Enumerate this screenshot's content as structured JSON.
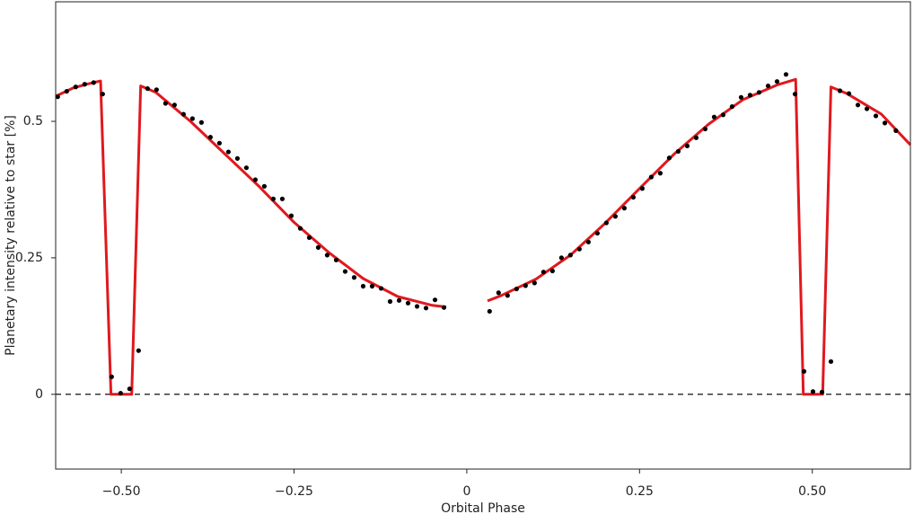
{
  "chart_data": {
    "type": "line",
    "x_label": "Orbital Phase",
    "y_label": "Planetary intensity relative to star [%]",
    "xlim": [
      -0.595,
      0.642
    ],
    "ylim": [
      -0.137,
      0.719
    ],
    "xticks": [
      {
        "value": -0.5,
        "label": "−0.50"
      },
      {
        "value": -0.25,
        "label": "−0.25"
      },
      0,
      0.25,
      {
        "value": 0.5,
        "label": "0.50"
      }
    ],
    "yticks": [
      0,
      0.25,
      0.5
    ],
    "reference_line": 0,
    "series": [
      {
        "type": "line",
        "color": "#e0191e",
        "x": [
          -0.595,
          -0.57,
          -0.55,
          -0.53,
          -0.515,
          -0.485,
          -0.472,
          -0.45,
          -0.4,
          -0.35,
          -0.3,
          -0.25,
          -0.2,
          -0.15,
          -0.1,
          -0.05,
          -0.03,
          0,
          0.03,
          0.05,
          0.1,
          0.15,
          0.2,
          0.25,
          0.3,
          0.35,
          0.4,
          0.45,
          0.476,
          0.487,
          0.515,
          0.527,
          0.55,
          0.6,
          0.642
        ],
        "values": [
          0.546,
          0.561,
          0.568,
          0.574,
          0,
          0,
          0.565,
          0.553,
          0.5,
          0.44,
          0.38,
          0.315,
          0.26,
          0.212,
          0.179,
          0.163,
          0.16,
          null,
          0.171,
          0.181,
          0.211,
          0.255,
          0.313,
          0.377,
          0.44,
          0.495,
          0.54,
          0.567,
          0.577,
          0,
          0,
          0.563,
          0.551,
          0.513,
          0.457
        ]
      },
      {
        "type": "scatter",
        "color": "#000000",
        "x": [
          -0.592,
          -0.579,
          -0.566,
          -0.553,
          -0.54,
          -0.527,
          -0.514,
          -0.501,
          -0.488,
          -0.475,
          -0.462,
          -0.449,
          -0.436,
          -0.423,
          -0.41,
          -0.397,
          -0.384,
          -0.371,
          -0.358,
          -0.345,
          -0.332,
          -0.319,
          -0.306,
          -0.293,
          -0.28,
          -0.267,
          -0.254,
          -0.241,
          -0.228,
          -0.215,
          -0.202,
          -0.189,
          -0.176,
          -0.163,
          -0.15,
          -0.137,
          -0.124,
          -0.111,
          -0.098,
          -0.085,
          -0.072,
          -0.059,
          -0.046,
          -0.033,
          0.033,
          0.046,
          0.059,
          0.072,
          0.085,
          0.098,
          0.111,
          0.124,
          0.137,
          0.15,
          0.163,
          0.176,
          0.189,
          0.202,
          0.215,
          0.228,
          0.241,
          0.254,
          0.267,
          0.28,
          0.293,
          0.306,
          0.319,
          0.332,
          0.345,
          0.358,
          0.371,
          0.384,
          0.397,
          0.41,
          0.423,
          0.436,
          0.449,
          0.462,
          0.475,
          0.488,
          0.501,
          0.514,
          0.527,
          0.54,
          0.553,
          0.566,
          0.579,
          0.592,
          0.605,
          0.621
        ],
        "values": [
          0.545,
          0.555,
          0.563,
          0.568,
          0.571,
          0.55,
          0.032,
          0.002,
          0.01,
          0.08,
          0.56,
          0.558,
          0.533,
          0.53,
          0.513,
          0.505,
          0.498,
          0.471,
          0.46,
          0.444,
          0.432,
          0.415,
          0.393,
          0.381,
          0.358,
          0.358,
          0.327,
          0.304,
          0.287,
          0.269,
          0.255,
          0.246,
          0.225,
          0.214,
          0.198,
          0.198,
          0.194,
          0.17,
          0.172,
          0.167,
          0.161,
          0.158,
          0.173,
          0.159,
          0.152,
          0.186,
          0.181,
          0.193,
          0.199,
          0.204,
          0.224,
          0.226,
          0.25,
          0.255,
          0.266,
          0.279,
          0.295,
          0.314,
          0.326,
          0.341,
          0.361,
          0.377,
          0.398,
          0.405,
          0.433,
          0.445,
          0.455,
          0.47,
          0.486,
          0.508,
          0.512,
          0.527,
          0.544,
          0.548,
          0.553,
          0.565,
          0.573,
          0.586,
          0.55,
          0.042,
          0.005,
          0.004,
          0.06,
          0.556,
          0.551,
          0.53,
          0.523,
          0.51,
          0.497,
          0.483
        ]
      }
    ]
  }
}
